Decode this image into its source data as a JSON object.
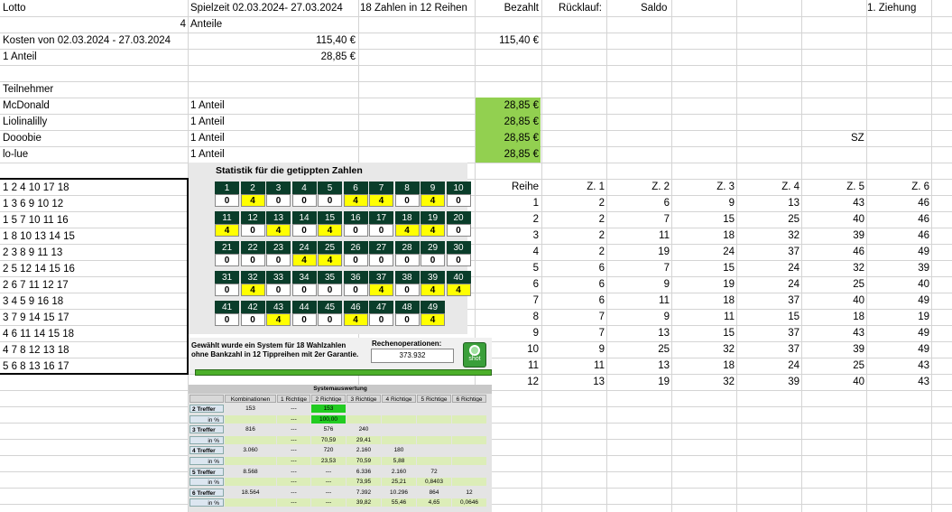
{
  "header": {
    "a1": "Lotto",
    "b1": "Spielzeit 02.03.2024- 27.03.2024",
    "c1": "18 Zahlen in 12 Reihen",
    "d1": "Bezahlt",
    "e1": "Rücklauf:",
    "f1": "Saldo",
    "k1": "1. Ziehung"
  },
  "shares_count": "4",
  "shares_label": "Anteile",
  "kosten_label": "Kosten von 02.03.2024 - 27.03.2024",
  "kosten_value": "115,40 €",
  "bezahlt_total": "115,40 €",
  "anteil_label": "1 Anteil",
  "anteil_value": "28,85 €",
  "teilnehmer_label": "Teilnehmer",
  "participants": [
    {
      "name": "McDonald",
      "share": "1 Anteil",
      "paid": "28,85 €"
    },
    {
      "name": "Liolinalilly",
      "share": "1 Anteil",
      "paid": "28,85 €"
    },
    {
      "name": "Dooobie",
      "share": "1 Anteil",
      "paid": "28,85 €"
    },
    {
      "name": "lo-lue",
      "share": "1 Anteil",
      "paid": "28,85 €"
    }
  ],
  "sz_label": "SZ",
  "tipp_rows": [
    "1 2 4 10 17 18",
    "1 3 6 9 10 12",
    "1 5 7 10 11 16",
    "1 8 10 13 14 15",
    "2 3 8 9 11 13",
    "2 5 12 14 15 16",
    "2 6 7 11 12 17",
    "3 4 5 9 16 18",
    "3 7 9 14 15 17",
    "4 6 11 14 15 18",
    "4 7 8 12 13 18",
    "5 6 8 13 16 17"
  ],
  "reihe_table": {
    "headers": [
      "Reihe",
      "Z. 1",
      "Z. 2",
      "Z. 3",
      "Z. 4",
      "Z. 5",
      "Z. 6"
    ],
    "rows": [
      [
        "1",
        "2",
        "6",
        "9",
        "13",
        "43",
        "46"
      ],
      [
        "2",
        "2",
        "7",
        "15",
        "25",
        "40",
        "46"
      ],
      [
        "3",
        "2",
        "11",
        "18",
        "32",
        "39",
        "46"
      ],
      [
        "4",
        "2",
        "19",
        "24",
        "37",
        "46",
        "49"
      ],
      [
        "5",
        "6",
        "7",
        "15",
        "24",
        "32",
        "39"
      ],
      [
        "6",
        "6",
        "9",
        "19",
        "24",
        "25",
        "40"
      ],
      [
        "7",
        "6",
        "11",
        "18",
        "37",
        "40",
        "49"
      ],
      [
        "8",
        "7",
        "9",
        "11",
        "15",
        "18",
        "19"
      ],
      [
        "9",
        "7",
        "13",
        "15",
        "37",
        "43",
        "49"
      ],
      [
        "10",
        "9",
        "25",
        "32",
        "37",
        "39",
        "49"
      ],
      [
        "11",
        "11",
        "13",
        "18",
        "24",
        "25",
        "43"
      ],
      [
        "12",
        "13",
        "19",
        "32",
        "39",
        "40",
        "43"
      ]
    ]
  },
  "statistik": {
    "title": "Statistik für die getippten Zahlen",
    "counts": [
      0,
      4,
      0,
      0,
      0,
      4,
      4,
      0,
      4,
      0,
      4,
      0,
      4,
      0,
      4,
      0,
      0,
      4,
      4,
      0,
      0,
      0,
      0,
      4,
      4,
      0,
      0,
      0,
      0,
      0,
      0,
      4,
      0,
      0,
      0,
      0,
      4,
      0,
      4,
      4,
      0,
      0,
      4,
      0,
      0,
      4,
      0,
      0,
      4
    ],
    "highlight_color": "#ffff00",
    "header_color": "#0a3d2a"
  },
  "system_info": {
    "text": "Gewählt wurde ein System für 18 Wahlzahlen ohne Bankzahl in 12 Tippreihen mit 2er Garantie.",
    "rechen_label": "Rechenoperationen:",
    "rechen_value": "373.932",
    "shot_label": "shot"
  },
  "systemauswertung": {
    "title": "Systemauswertung",
    "columns": [
      "Kombinationen",
      "1 Richtige",
      "2 Richtige",
      "3 Richtige",
      "4 Richtige",
      "5 Richtige",
      "6 Richtige"
    ],
    "rows": [
      {
        "label": "2 Treffer",
        "cells": [
          "153",
          "---",
          "153",
          "",
          "",
          "",
          ""
        ]
      },
      {
        "label": "in %",
        "cells": [
          "",
          "---",
          "100,00",
          "",
          "",
          "",
          ""
        ]
      },
      {
        "label": "3 Treffer",
        "cells": [
          "816",
          "---",
          "576",
          "240",
          "",
          "",
          ""
        ]
      },
      {
        "label": "in %",
        "cells": [
          "",
          "---",
          "70,59",
          "29,41",
          "",
          "",
          ""
        ]
      },
      {
        "label": "4 Treffer",
        "cells": [
          "3.060",
          "---",
          "720",
          "2.160",
          "180",
          "",
          ""
        ]
      },
      {
        "label": "in %",
        "cells": [
          "",
          "---",
          "23,53",
          "70,59",
          "5,88",
          "",
          ""
        ]
      },
      {
        "label": "5 Treffer",
        "cells": [
          "8.568",
          "---",
          "---",
          "6.336",
          "2.160",
          "72",
          ""
        ]
      },
      {
        "label": "in %",
        "cells": [
          "",
          "---",
          "---",
          "73,95",
          "25,21",
          "0,8403",
          ""
        ]
      },
      {
        "label": "6 Treffer",
        "cells": [
          "18.564",
          "---",
          "---",
          "7.392",
          "10.296",
          "864",
          "12"
        ]
      },
      {
        "label": "in %",
        "cells": [
          "",
          "---",
          "---",
          "39,82",
          "55,46",
          "4,65",
          "0,0646"
        ]
      }
    ]
  },
  "colors": {
    "paid_green": "#92d050",
    "grid": "#d4d4d4",
    "sys_green": "#22cc22"
  }
}
